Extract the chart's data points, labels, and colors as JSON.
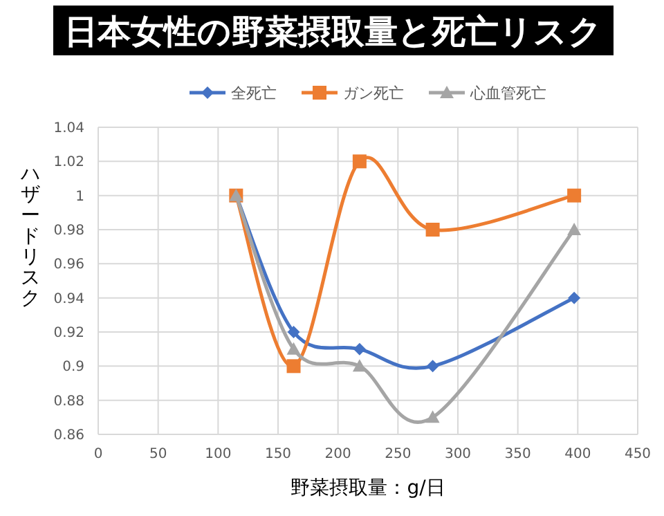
{
  "chart_data": {
    "type": "line",
    "title": "日本女性の野菜摂取量と死亡リスク",
    "xlabel": "野菜摂取量：g/日",
    "ylabel": "ハザードリスク",
    "xlim": [
      0,
      450
    ],
    "xticks": [
      0,
      50,
      100,
      150,
      200,
      250,
      300,
      350,
      400,
      450
    ],
    "ylim": [
      0.86,
      1.04
    ],
    "yticks": [
      0.86,
      0.88,
      0.9,
      0.92,
      0.94,
      0.96,
      0.98,
      1,
      1.02,
      1.04
    ],
    "grid": true,
    "legend": "top",
    "series": [
      {
        "name": "全死亡",
        "color": "#4472c4",
        "marker": "diamond",
        "x": [
          115,
          163,
          218,
          279,
          397
        ],
        "values": [
          1.0,
          0.92,
          0.91,
          0.9,
          0.94
        ]
      },
      {
        "name": "ガン死亡",
        "color": "#ed7d31",
        "marker": "square",
        "x": [
          115,
          163,
          218,
          279,
          397
        ],
        "values": [
          1.0,
          0.9,
          1.02,
          0.98,
          1.0
        ]
      },
      {
        "name": "心血管死亡",
        "color": "#a5a5a5",
        "marker": "triangle",
        "x": [
          115,
          163,
          218,
          279,
          397
        ],
        "values": [
          1.0,
          0.91,
          0.9,
          0.87,
          0.98
        ]
      }
    ]
  }
}
